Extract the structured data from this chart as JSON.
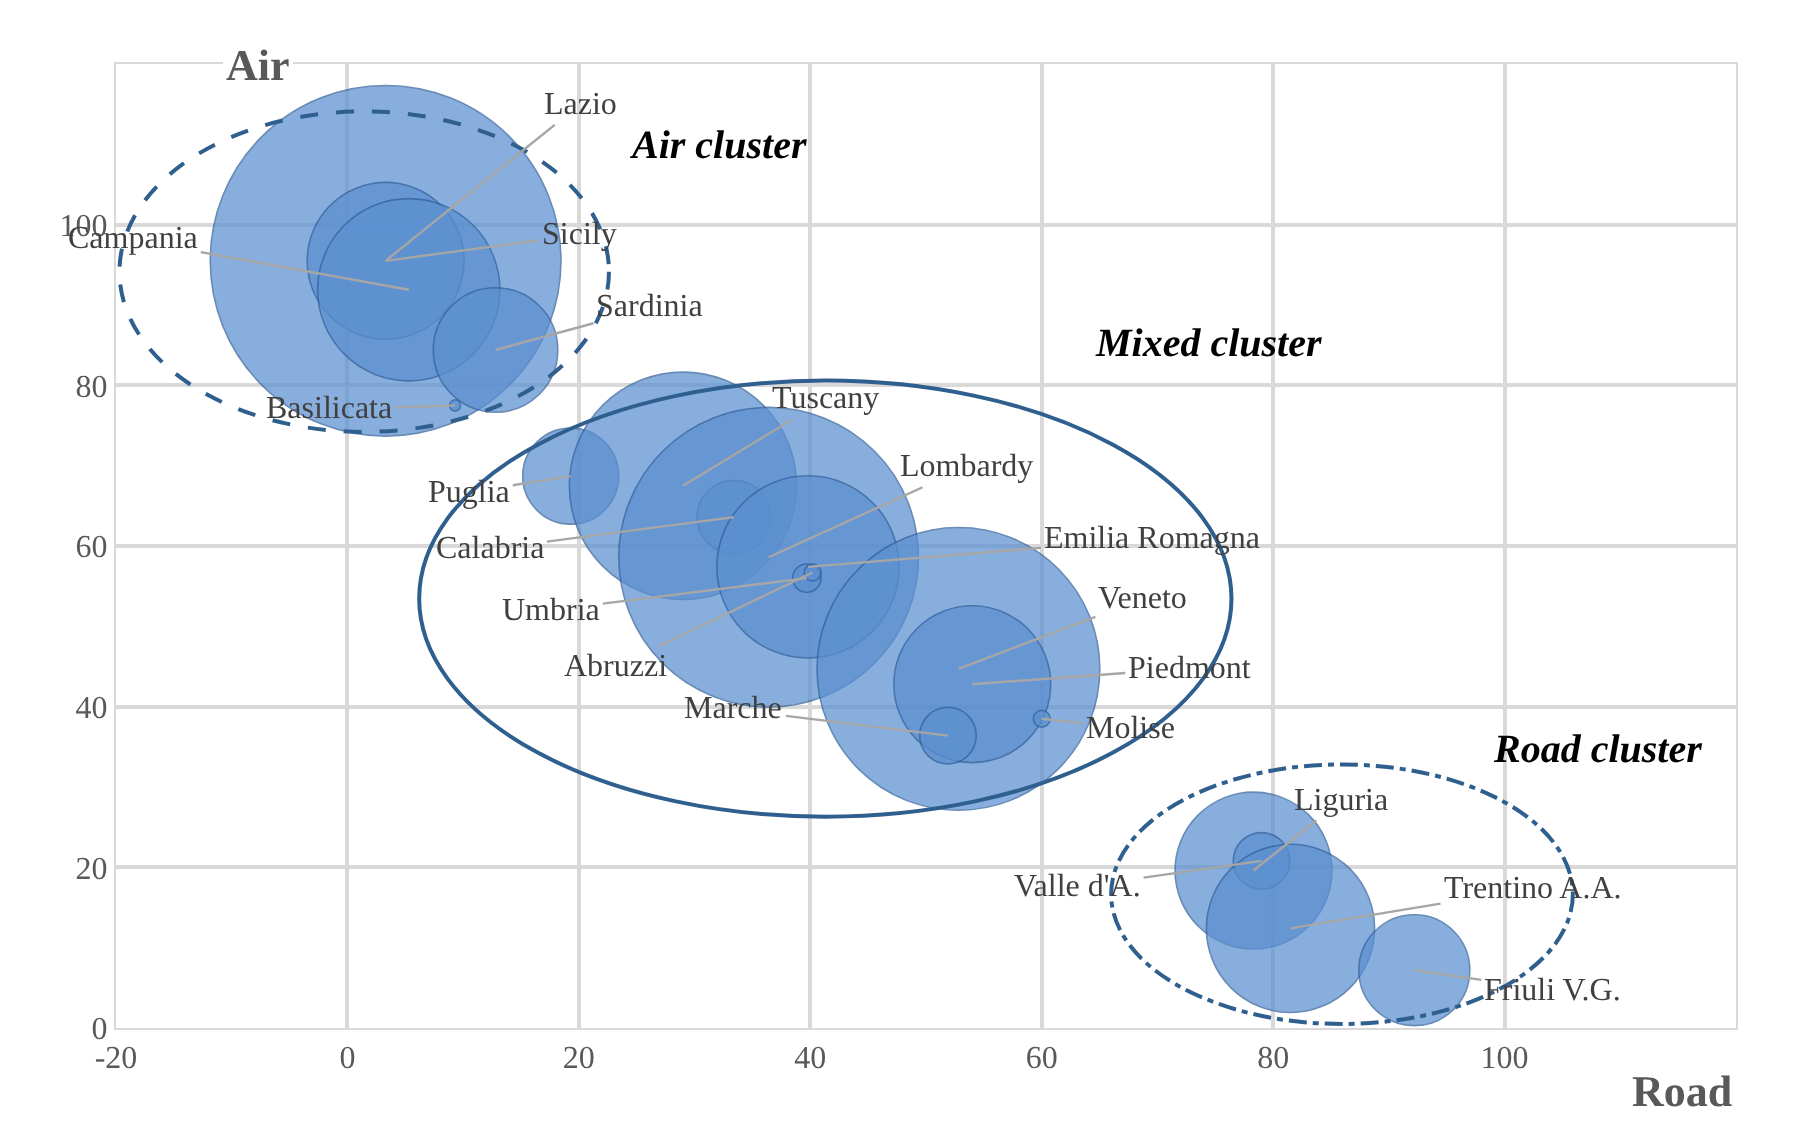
{
  "chart_data": {
    "type": "bubble",
    "xlabel": "Road",
    "ylabel": "Air",
    "x": [
      3.3,
      3.3,
      5.3,
      12.8,
      9.3,
      19.3,
      29,
      33.4,
      36.4,
      39.8,
      39.7,
      40.2,
      52.8,
      54,
      51.9,
      60,
      78.3,
      79,
      81.5,
      92.2
    ],
    "values": [
      95.5,
      95.5,
      91.9,
      84.4,
      77.5,
      68.7,
      67.5,
      63.6,
      58.6,
      57.4,
      56,
      56.7,
      44.7,
      42.8,
      36.4,
      38.5,
      19.6,
      20.8,
      12.4,
      7.2
    ],
    "sizes": [
      1,
      0.2,
      0.27,
      0.126,
      0.001,
      0.075,
      0.42,
      0.044,
      0.73,
      0.27,
      0.0065,
      0.0023,
      0.65,
      0.2,
      0.026,
      0.0023,
      0.2,
      0.026,
      0.23,
      0.1
    ],
    "color": "#5b8fd0",
    "xlim": [
      -20,
      120
    ],
    "ylim": [
      0,
      120
    ],
    "xticks": [
      -20,
      0,
      20,
      40,
      60,
      80,
      100,
      {
        "value": 120,
        "label": null
      }
    ],
    "yticks": [
      0,
      20,
      40,
      60,
      80,
      100,
      {
        "value": 120,
        "label": null
      }
    ],
    "grid": true,
    "annotations": [
      {
        "text": "Lazio",
        "x": 3.3,
        "y": 95.5
      },
      {
        "text": "Sicily",
        "x": 3.3,
        "y": 95.5
      },
      {
        "text": "Campania",
        "x": 5.3,
        "y": 91.9
      },
      {
        "text": "Sardinia",
        "x": 12.8,
        "y": 84.4
      },
      {
        "text": "Basilicata",
        "x": 9.3,
        "y": 77.5
      },
      {
        "text": "Puglia",
        "x": 19.3,
        "y": 68.7
      },
      {
        "text": "Tuscany",
        "x": 29,
        "y": 67.5
      },
      {
        "text": "Calabria",
        "x": 33.4,
        "y": 63.6
      },
      {
        "text": "Lombardy",
        "x": 36.4,
        "y": 58.6
      },
      {
        "text": "Emilia Romagna",
        "x": 39.8,
        "y": 57.4
      },
      {
        "text": "Umbria",
        "x": 39.7,
        "y": 56
      },
      {
        "text": "Abruzzi",
        "x": 40.2,
        "y": 56.7
      },
      {
        "text": "Veneto",
        "x": 52.8,
        "y": 44.7
      },
      {
        "text": "Piedmont",
        "x": 54,
        "y": 42.8
      },
      {
        "text": "Marche",
        "x": 51.9,
        "y": 36.4
      },
      {
        "text": "Molise",
        "x": 60,
        "y": 38.5
      },
      {
        "text": "Liguria",
        "x": 78.3,
        "y": 19.6
      },
      {
        "text": "Valle d'A.",
        "x": 79,
        "y": 20.8
      },
      {
        "text": "Trentino A.A.",
        "x": 81.5,
        "y": 12.4
      },
      {
        "text": "Friuli V.G.",
        "x": 92.2,
        "y": 7.2
      },
      "Air cluster",
      "Mixed cluster",
      "Road cluster"
    ]
  }
}
